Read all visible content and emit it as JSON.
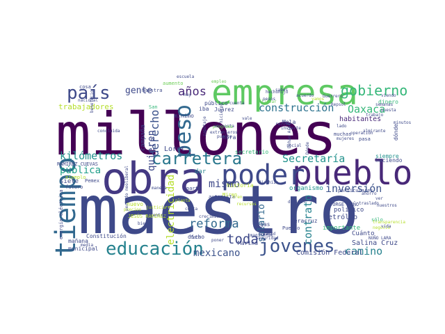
{
  "colors": {
    "background": "#ffffff",
    "palette": [
      "#440154",
      "#482878",
      "#3e4989",
      "#31688e",
      "#26828e",
      "#1f9e89",
      "#35b779",
      "#6ece58",
      "#b5de2b",
      "#fde725"
    ]
  },
  "words": [
    {
      "text": "millones",
      "color": "#440154"
    },
    {
      "text": "maestro",
      "color": "#3e4989"
    },
    {
      "text": "obra",
      "color": "#443983"
    },
    {
      "text": "pueblo",
      "color": "#482878"
    },
    {
      "text": "empresa",
      "color": "#5ec962"
    },
    {
      "text": "poder",
      "color": "#3e4989"
    },
    {
      "text": "tiempo",
      "color": "#31688e"
    },
    {
      "text": "educación",
      "color": "#26828e"
    },
    {
      "text": "jóvenes",
      "color": "#3b528b"
    },
    {
      "text": "carretera",
      "color": "#2a788e"
    },
    {
      "text": "país",
      "color": "#3e4989"
    },
    {
      "text": "gobierno",
      "color": "#35b779"
    },
    {
      "text": "peso",
      "color": "#31688e"
    },
    {
      "text": "kilómetros",
      "color": "#21918c"
    },
    {
      "text": "Secretaría",
      "color": "#21918c"
    },
    {
      "text": "años",
      "color": "#482878"
    },
    {
      "text": "inversión",
      "color": "#3b528b"
    },
    {
      "text": "reforma",
      "color": "#31688e"
    },
    {
      "text": "Oaxaca",
      "color": "#35b779"
    },
    {
      "text": "construcción",
      "color": "#2c728e"
    },
    {
      "text": "camino",
      "color": "#26828e"
    },
    {
      "text": "mismo",
      "color": "#3e4989"
    },
    {
      "text": "derecho",
      "color": "#3b528b"
    },
    {
      "text": "quieren",
      "color": "#3e4989"
    },
    {
      "text": "gente",
      "color": "#3e4989"
    },
    {
      "text": "pública",
      "color": "#1f9e89"
    },
    {
      "text": "toda",
      "color": "#3e4989"
    },
    {
      "text": "electricidad",
      "color": "#b5de2b"
    },
    {
      "text": "mexicano",
      "color": "#3b528b"
    },
    {
      "text": "contrato",
      "color": "#26828e"
    },
    {
      "text": "salario",
      "color": "#31688e"
    },
    {
      "text": "trabajadores",
      "color": "#b5de2b"
    },
    {
      "text": "habitantes",
      "color": "#482878"
    },
    {
      "text": "campaña",
      "color": "#3e4989"
    },
    {
      "text": "Loret",
      "color": "#3e4989"
    },
    {
      "text": "Comisión Federal",
      "color": "#3e4989"
    },
    {
      "text": "Salina Cruz",
      "color": "#3e4989"
    },
    {
      "text": "Constitución",
      "color": "#3e4989"
    },
    {
      "text": "RAMÍREZ CUEVAS",
      "color": "#3e4989"
    },
    {
      "text": "JESÚS RAMÍREZ",
      "color": "#b5de2b"
    },
    {
      "text": "organismo",
      "color": "#21918c"
    },
    {
      "text": "petróleo",
      "color": "#3e4989"
    },
    {
      "text": "importante",
      "color": "#35b779"
    },
    {
      "text": "Veracruz",
      "color": "#3e4989"
    },
    {
      "text": "Marina",
      "color": "#3e4989"
    },
    {
      "text": "Cuánto",
      "color": "#3e4989"
    },
    {
      "text": "Pemex",
      "color": "#3e4989"
    },
    {
      "text": "energía eléctrica",
      "color": "#3e4989"
    },
    {
      "text": "siete",
      "color": "#3e4989"
    },
    {
      "text": "futuro",
      "color": "#3e4989"
    },
    {
      "text": "mañana",
      "color": "#3e4989"
    },
    {
      "text": "municipal",
      "color": "#3e4989"
    },
    {
      "text": "político",
      "color": "#3e4989"
    },
    {
      "text": "JORGE NUÑO",
      "color": "#3e4989"
    },
    {
      "text": "aumento",
      "color": "#6ece58"
    },
    {
      "text": "maestra",
      "color": "#3e4989"
    },
    {
      "text": "dicho",
      "color": "#3e4989"
    },
    {
      "text": "agua",
      "color": "#3e4989"
    },
    {
      "text": "gas",
      "color": "#3e4989"
    },
    {
      "text": "hora",
      "color": "#3e4989"
    },
    {
      "text": "Juárez",
      "color": "#3e4989"
    },
    {
      "text": "público",
      "color": "#3e4989"
    },
    {
      "text": "iba",
      "color": "#3e4989"
    },
    {
      "text": "mínimo",
      "color": "#3e4989"
    },
    {
      "text": "Mola",
      "color": "#3e4989"
    },
    {
      "text": "dar",
      "color": "#26828e"
    },
    {
      "text": "siempre",
      "color": "#21918c"
    },
    {
      "text": "haciendo",
      "color": "#3e4989"
    },
    {
      "text": "particulares",
      "color": "#3e4989"
    },
    {
      "text": "dinero",
      "color": "#35b779"
    },
    {
      "text": "cosa",
      "color": "#3e4989"
    },
    {
      "text": "nacional",
      "color": "#3e4989"
    },
    {
      "text": "San",
      "color": "#35b779"
    },
    {
      "text": "nuevo",
      "color": "#b5de2b"
    },
    {
      "text": "bien",
      "color": "#3e4989"
    },
    {
      "text": "parte",
      "color": "#3e4989"
    },
    {
      "text": "secretario",
      "color": "#35b779"
    },
    {
      "text": "historia",
      "color": "#b5de2b"
    },
    {
      "text": "autopista",
      "color": "#3e4989"
    },
    {
      "text": "Puerto",
      "color": "#3e4989"
    },
    {
      "text": "sólo",
      "color": "#35b779"
    },
    {
      "text": "ejemplo",
      "color": "#b5de2b"
    },
    {
      "text": "Dónde",
      "color": "#3e4989"
    },
    {
      "text": "dónde",
      "color": "#3e4989"
    },
    {
      "text": "muchas",
      "color": "#3e4989"
    },
    {
      "text": "pasa",
      "color": "#3e4989"
    },
    {
      "text": "social",
      "color": "#3e4989"
    },
    {
      "text": "almirante",
      "color": "#3e4989"
    },
    {
      "text": "viendo",
      "color": "#3e4989"
    },
    {
      "text": "NUÑO LARA",
      "color": "#3e4989"
    },
    {
      "text": "traslado",
      "color": "#3e4989"
    },
    {
      "text": "seguridad",
      "color": "#3e4989"
    },
    {
      "text": "foto",
      "color": "#3e4989"
    },
    {
      "text": "poner",
      "color": "#3e4989"
    },
    {
      "text": "periodo neoliberal",
      "color": "#3e4989"
    },
    {
      "text": "Repsol",
      "color": "#3e4989"
    },
    {
      "text": "cuenta",
      "color": "#3e4989"
    },
    {
      "text": "encuesta",
      "color": "#3e4989"
    },
    {
      "text": "programa",
      "color": "#6ece58"
    },
    {
      "text": "puente",
      "color": "#3e4989"
    },
    {
      "text": "minutos",
      "color": "#3e4989"
    },
    {
      "text": "hecho",
      "color": "#3e4989"
    },
    {
      "text": "empleo",
      "color": "#6ece58"
    },
    {
      "text": "llevar",
      "color": "#6ece58"
    },
    {
      "text": "salud",
      "color": "#3e4989"
    },
    {
      "text": "sabes",
      "color": "#3e4989"
    },
    {
      "text": "acuerdo",
      "color": "#3e4989"
    },
    {
      "text": "vamos",
      "color": "#b5de2b"
    },
    {
      "text": "pesos",
      "color": "#3e4989"
    },
    {
      "text": "operación",
      "color": "#3e4989"
    },
    {
      "text": "mujeres",
      "color": "#3e4989"
    },
    {
      "text": "lado",
      "color": "#3e4989"
    },
    {
      "text": "imaginense",
      "color": "#3e4989"
    },
    {
      "text": "transparencia",
      "color": "#b5de2b"
    },
    {
      "text": "negocio",
      "color": "#b5de2b"
    },
    {
      "text": "concluida",
      "color": "#3e4989"
    },
    {
      "text": "beneficio",
      "color": "#3e4989"
    },
    {
      "text": "difícil",
      "color": "#3e4989"
    },
    {
      "text": "recursos",
      "color": "#b5de2b"
    },
    {
      "text": "precios",
      "color": "#b5de2b"
    },
    {
      "text": "Dehan Asof",
      "color": "#3e4989"
    },
    {
      "text": "escuela",
      "color": "#3e4989"
    },
    {
      "text": "hay",
      "color": "#3e4989"
    },
    {
      "text": "media",
      "color": "#3e4989"
    },
    {
      "text": "Miren",
      "color": "#b5de2b"
    },
    {
      "text": "tren",
      "color": "#b5de2b"
    },
    {
      "text": "dio",
      "color": "#3e4989"
    },
    {
      "text": "hizo",
      "color": "#3e4989"
    },
    {
      "text": "vale",
      "color": "#3e4989"
    },
    {
      "text": "hicieron",
      "color": "#3e4989"
    },
    {
      "text": "zapotaje",
      "color": "#3e4989"
    },
    {
      "text": "extranjeros",
      "color": "#3e4989"
    },
    {
      "text": "recibe",
      "color": "#3e4989"
    },
    {
      "text": "invierte",
      "color": "#3e4989"
    },
    {
      "text": "hijo",
      "color": "#3e4989"
    },
    {
      "text": "Guerrero",
      "color": "#3e4989"
    },
    {
      "text": "semanas",
      "color": "#3e4989"
    },
    {
      "text": "puesta",
      "color": "#3e4989"
    },
    {
      "text": "justicia",
      "color": "#b5de2b"
    },
    {
      "text": "entrega",
      "color": "#3e4989"
    },
    {
      "text": "trabajo",
      "color": "#3e4989"
    },
    {
      "text": "vida",
      "color": "#3e4989"
    },
    {
      "text": "manera",
      "color": "#3e4989"
    },
    {
      "text": "planta",
      "color": "#b5de2b"
    },
    {
      "text": "crecimiento",
      "color": "#3e4989"
    },
    {
      "text": "costa",
      "color": "#3e4989"
    },
    {
      "text": "ahorro",
      "color": "#3e4989"
    },
    {
      "text": "ver",
      "color": "#3e4989"
    },
    {
      "text": "nuestros",
      "color": "#3e4989"
    }
  ]
}
